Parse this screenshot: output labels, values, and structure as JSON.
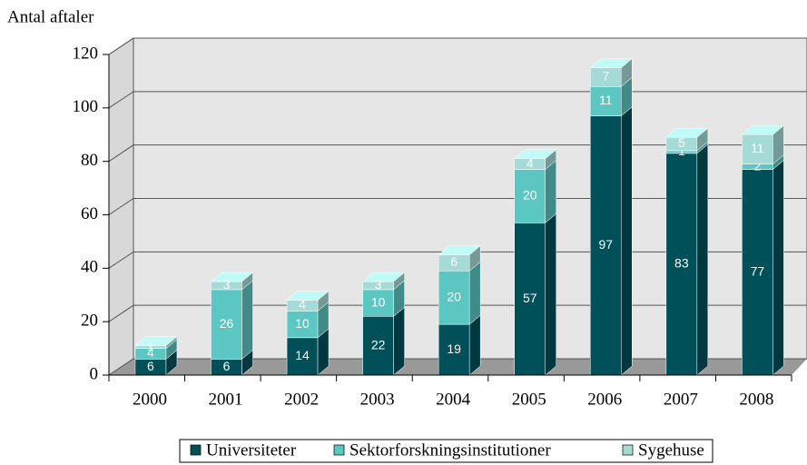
{
  "chart_data": {
    "type": "bar",
    "stacked": true,
    "y_label": "Antal aftaler",
    "categories": [
      "2000",
      "2001",
      "2002",
      "2003",
      "2004",
      "2005",
      "2006",
      "2007",
      "2008"
    ],
    "series": [
      {
        "name": "Universiteter",
        "color": "#00505a",
        "values": [
          6,
          6,
          14,
          22,
          19,
          57,
          97,
          83,
          77
        ]
      },
      {
        "name": "Sektorforskningsinstitutioner",
        "color": "#5cc6c2",
        "values": [
          4,
          26,
          10,
          10,
          20,
          20,
          11,
          1,
          2
        ]
      },
      {
        "name": "Sygehuse",
        "color": "#a6dad7",
        "values": [
          1,
          3,
          4,
          3,
          6,
          4,
          7,
          5,
          11
        ]
      }
    ],
    "ylim": [
      0,
      120
    ],
    "yticks": [
      0,
      20,
      40,
      60,
      80,
      100,
      120
    ],
    "grid": true
  }
}
